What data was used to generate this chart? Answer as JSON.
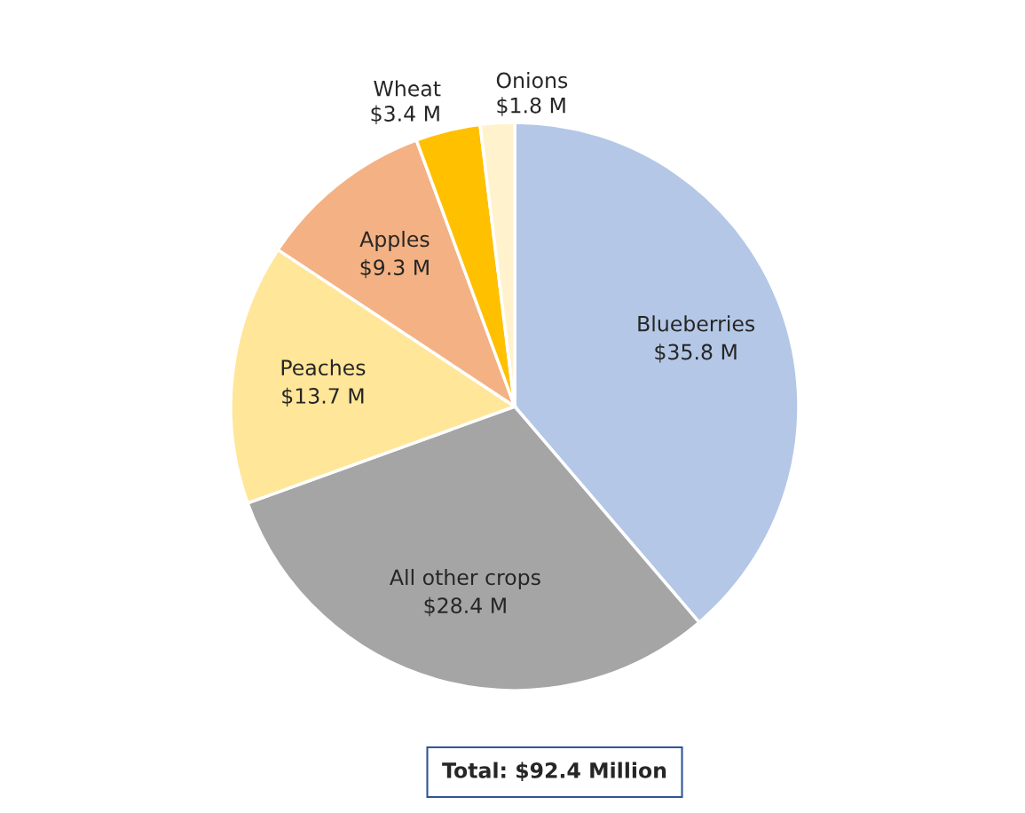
{
  "chart_data": {
    "type": "pie",
    "categories": [
      "Blueberries",
      "All other crops",
      "Peaches",
      "Apples",
      "Wheat",
      "Onions"
    ],
    "values": [
      35.8,
      28.4,
      13.7,
      9.3,
      3.4,
      1.8
    ],
    "colors": [
      "#b4c7e7",
      "#a5a5a5",
      "#ffe699",
      "#f4b183",
      "#ffc000",
      "#fff2cc"
    ],
    "value_labels": [
      "$35.8 M",
      "$28.4 M",
      "$13.7 M",
      "$9.3 M",
      "$3.4 M",
      "$1.8 M"
    ],
    "annotations": [
      "Total: $92.4 Million"
    ],
    "legend": false
  }
}
